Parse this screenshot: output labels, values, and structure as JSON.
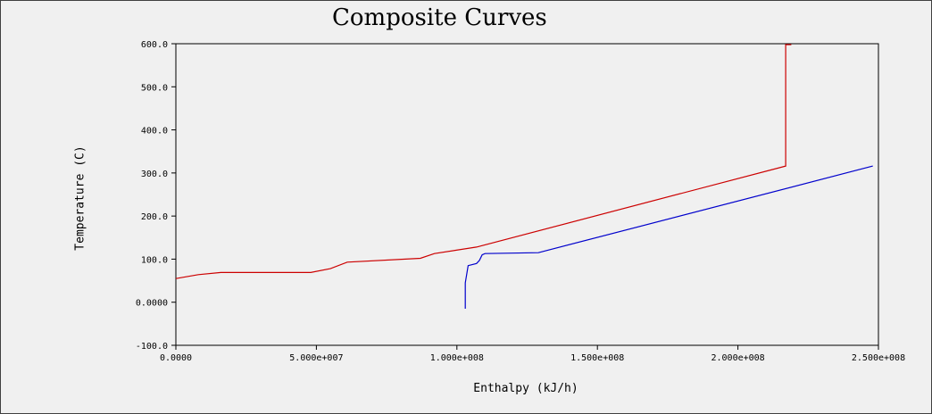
{
  "chart_data": {
    "type": "line",
    "title": "Composite Curves",
    "xlabel": "Enthalpy (kJ/h)",
    "ylabel": "Temperature (C)",
    "xlim": [
      0,
      250000000
    ],
    "ylim": [
      -100,
      600
    ],
    "x_ticks": [
      0,
      50000000,
      100000000,
      150000000,
      200000000,
      250000000
    ],
    "x_tick_labels": [
      "0.0000",
      "5.000e+007",
      "1.000e+008",
      "1.500e+008",
      "2.000e+008",
      "2.500e+008"
    ],
    "y_ticks": [
      -100,
      0,
      100,
      200,
      300,
      400,
      500,
      600
    ],
    "y_tick_labels": [
      "-100.0",
      "0.0000",
      "100.0",
      "200.0",
      "300.0",
      "400.0",
      "500.0",
      "600.0"
    ],
    "grid": false,
    "series": [
      {
        "color": "#cc0000",
        "points": [
          [
            0,
            55
          ],
          [
            8000000,
            64
          ],
          [
            16000000,
            69
          ],
          [
            48000000,
            69
          ],
          [
            55000000,
            78
          ],
          [
            61000000,
            93
          ],
          [
            87000000,
            102
          ],
          [
            92000000,
            113
          ],
          [
            107000000,
            128
          ],
          [
            217000000,
            316
          ],
          [
            217000000,
            598
          ],
          [
            219000000,
            598
          ]
        ]
      },
      {
        "color": "#0000cc",
        "points": [
          [
            103000000,
            -15
          ],
          [
            103000000,
            45
          ],
          [
            104000000,
            85
          ],
          [
            107000000,
            90
          ],
          [
            108000000,
            97
          ],
          [
            109000000,
            110
          ],
          [
            110000000,
            113
          ],
          [
            129000000,
            115
          ],
          [
            248000000,
            316
          ]
        ]
      }
    ]
  }
}
